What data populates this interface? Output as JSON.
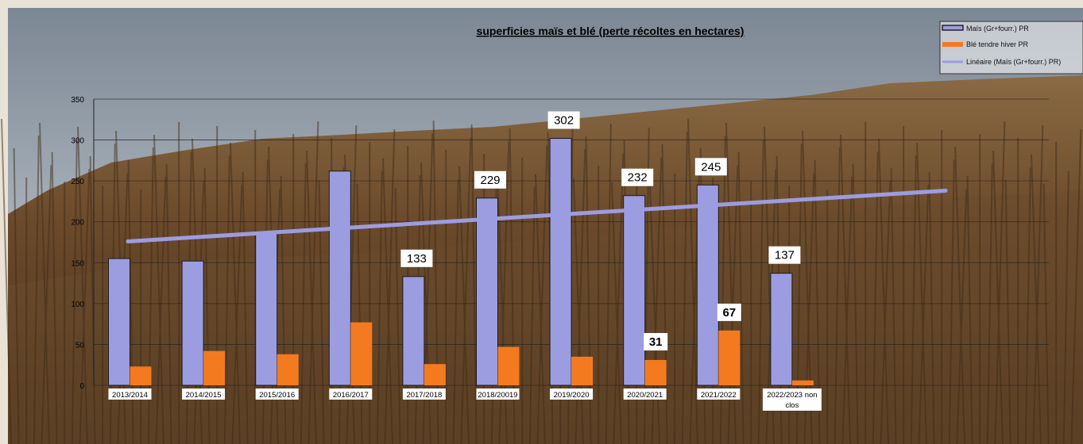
{
  "chart_data": {
    "type": "bar",
    "title": "superficies maïs et blé  (perte récoltes en hectares)",
    "xlabel": "",
    "ylabel": "",
    "ylim": [
      0,
      350
    ],
    "yticks": [
      "0",
      "50",
      "100",
      "150",
      "200",
      "250",
      "300",
      "350"
    ],
    "grid": true,
    "legend_position": "top-right",
    "categories": [
      "2013/2014",
      "2014/2015",
      "2015/2016",
      "2016/2017",
      "2017/2018",
      "2018/20019",
      "2019/2020",
      "2020/2021",
      "2021/2022",
      "2022/2023 non clos"
    ],
    "series": [
      {
        "name": "Maïs (Gr+fourr.) PR",
        "color": "#9c9ce0",
        "values": [
          155,
          152,
          186,
          262,
          133,
          229,
          302,
          232,
          245,
          137
        ]
      },
      {
        "name": "Blé tendre hiver PR",
        "color": "#f47a20",
        "values": [
          23,
          42,
          38,
          77,
          26,
          47,
          35,
          31,
          67,
          6
        ]
      }
    ],
    "trendline": {
      "name": "Linéaire (Maïs (Gr+fourr.) PR)",
      "color": "#9c9ce0",
      "start": 176,
      "end": 238
    },
    "data_labels": [
      {
        "series": 0,
        "index": 4,
        "text": "133"
      },
      {
        "series": 0,
        "index": 5,
        "text": "229"
      },
      {
        "series": 0,
        "index": 6,
        "text": "302"
      },
      {
        "series": 0,
        "index": 7,
        "text": "232"
      },
      {
        "series": 0,
        "index": 8,
        "text": "245"
      },
      {
        "series": 0,
        "index": 9,
        "text": "137"
      },
      {
        "series": 1,
        "index": 7,
        "text": "31"
      },
      {
        "series": 1,
        "index": 8,
        "text": "67"
      }
    ]
  }
}
